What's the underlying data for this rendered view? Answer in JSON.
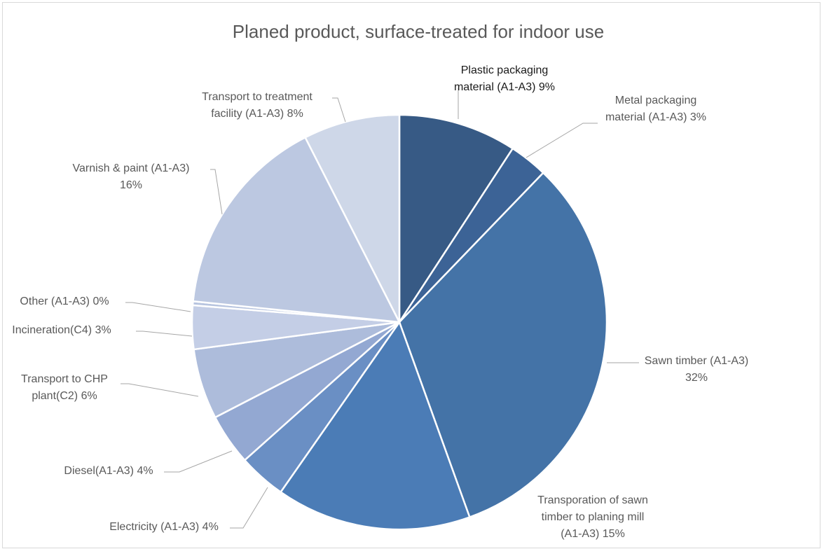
{
  "chart_data": {
    "type": "pie",
    "title": "Planed product, surface-treated for indoor use",
    "colors": {
      "plastic": "#375a85",
      "metal": "#3c6396",
      "sawn": "#4473a7",
      "transport_planing": "#4b7cb6",
      "electricity": "#6a8fc4",
      "diesel": "#93a8d2",
      "transport_chp": "#adbcdb",
      "incineration": "#c4cee6",
      "other": "#b7c4df",
      "varnish": "#bcc8e1",
      "transport_treatment": "#ced7e8"
    },
    "slices": [
      {
        "id": "plastic",
        "label_lines": [
          "Plastic packaging",
          "material (A1-A3) 9%"
        ],
        "value": 9.2
      },
      {
        "id": "metal",
        "label_lines": [
          "Metal packaging",
          "material (A1-A3) 3%"
        ],
        "value": 3.0
      },
      {
        "id": "sawn",
        "label_lines": [
          "Sawn timber (A1-A3)",
          "32%"
        ],
        "value": 32.3
      },
      {
        "id": "transport_planing",
        "label_lines": [
          "Transporation of sawn",
          "timber to planing mill",
          "(A1-A3)  15%"
        ],
        "value": 15.2
      },
      {
        "id": "electricity",
        "label_lines": [
          "Electricity (A1-A3)  4%"
        ],
        "value": 3.7
      },
      {
        "id": "diesel",
        "label_lines": [
          "Diesel(A1-A3) 4%"
        ],
        "value": 4.0
      },
      {
        "id": "transport_chp",
        "label_lines": [
          "Transport to CHP",
          "plant(C2) 6%"
        ],
        "value": 5.5
      },
      {
        "id": "incineration",
        "label_lines": [
          "Incineration(C4)  3%"
        ],
        "value": 3.4
      },
      {
        "id": "other",
        "label_lines": [
          "Other (A1-A3) 0%"
        ],
        "value": 0.3
      },
      {
        "id": "varnish",
        "label_lines": [
          "Varnish & paint (A1-A3)",
          "16%"
        ],
        "value": 15.9
      },
      {
        "id": "transport_treatment",
        "label_lines": [
          "Transport to treatment",
          "facility (A1-A3) 8%"
        ],
        "value": 7.5
      }
    ]
  }
}
